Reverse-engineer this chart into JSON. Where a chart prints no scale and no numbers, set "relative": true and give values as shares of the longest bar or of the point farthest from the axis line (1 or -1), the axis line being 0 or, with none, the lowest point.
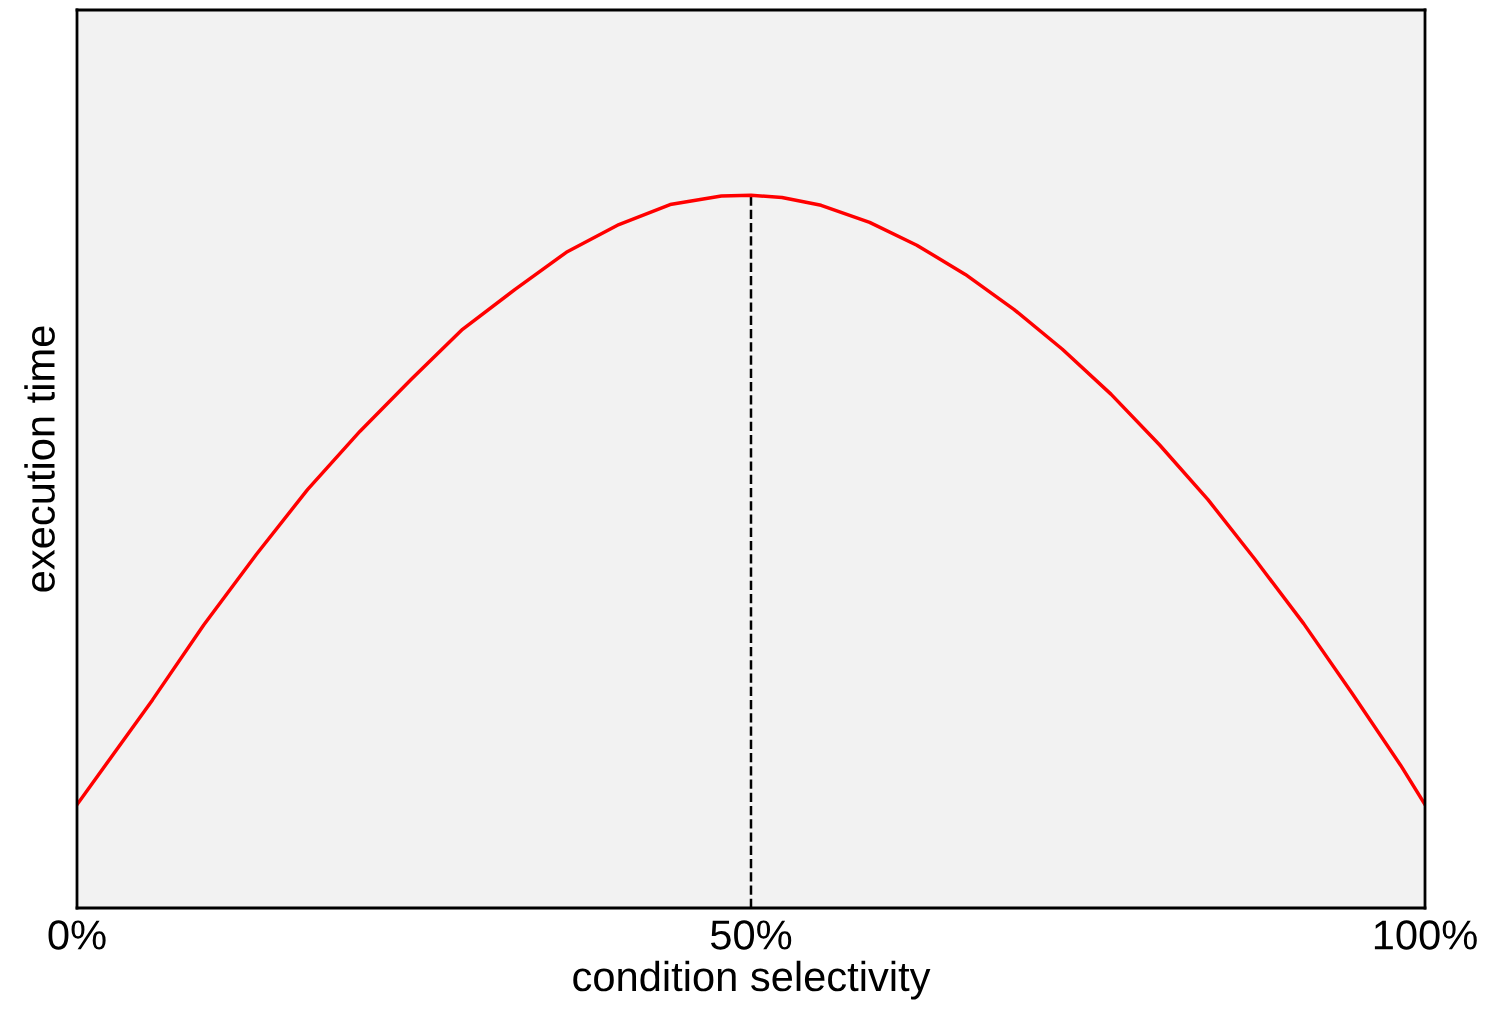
{
  "chart_data": {
    "type": "line",
    "relative": true,
    "xlabel": "condition selectivity",
    "ylabel": "execution time",
    "x": [
      0,
      5.6,
      9.4,
      13.3,
      17.1,
      21.0,
      24.8,
      28.6,
      32.5,
      36.3,
      40.2,
      44.0,
      47.8,
      50,
      52.3,
      55.2,
      58.8,
      62.3,
      65.9,
      69.5,
      73.1,
      76.7,
      80.3,
      83.9,
      87.4,
      91.0,
      94.6,
      98.2,
      100
    ],
    "series": [
      {
        "color": "#ff0000",
        "values": [
          0.145,
          0.292,
          0.397,
          0.496,
          0.587,
          0.669,
          0.742,
          0.812,
          0.868,
          0.92,
          0.959,
          0.987,
          0.999,
          1,
          0.997,
          0.986,
          0.962,
          0.93,
          0.889,
          0.84,
          0.784,
          0.721,
          0.65,
          0.573,
          0.489,
          0.399,
          0.301,
          0.2,
          0.145
        ]
      }
    ],
    "xlim": [
      0,
      100
    ],
    "xticks": [
      {
        "value": 0,
        "label": "0%"
      },
      {
        "value": 50,
        "label": "50%"
      },
      {
        "value": 100,
        "label": "100%"
      }
    ],
    "ref_lines": [
      {
        "axis": "x",
        "value": 50,
        "color": "#000000",
        "line_style": "dashed"
      }
    ],
    "tick_labels": "x",
    "grid": false,
    "legend": false,
    "marker": "none",
    "line_style": "solid"
  }
}
